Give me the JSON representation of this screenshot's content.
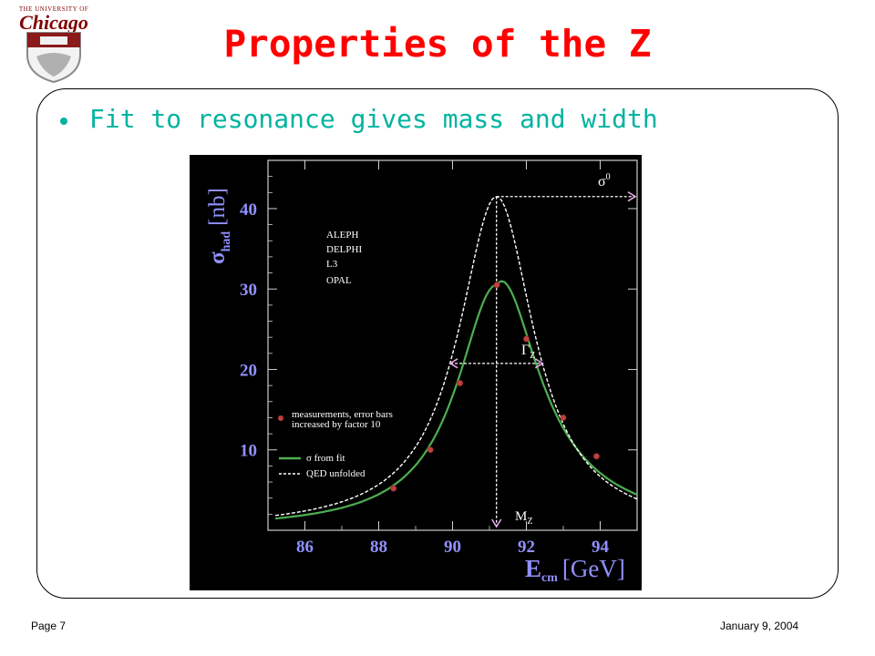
{
  "logo": {
    "top_text": "THE UNIVERSITY OF",
    "name": "Chicago"
  },
  "slide": {
    "title": "Properties of the Z",
    "bullet": "Fit to resonance gives mass and width"
  },
  "footer": {
    "page": "Page 7",
    "date": "January 9, 2004"
  },
  "colors": {
    "title": "#ff0000",
    "bullet": "#00b3a0",
    "chart_bg": "#000000",
    "axis_label": "#9090ff",
    "fit_curve": "#4caf50",
    "qed_curve": "#ffffff",
    "points": "#c04040",
    "arrows": "#e6a8e6"
  },
  "chart_data": {
    "type": "line",
    "xlabel_main": "E",
    "xlabel_sub": "cm",
    "xlabel_unit": "[GeV]",
    "ylabel_main": "σ",
    "ylabel_sub": "had",
    "ylabel_unit": "[nb]",
    "xlim": [
      85,
      95
    ],
    "ylim": [
      0,
      46
    ],
    "x_ticks": [
      86,
      88,
      90,
      92,
      94
    ],
    "y_ticks": [
      10,
      20,
      30,
      40
    ],
    "experiments": [
      "ALEPH",
      "DELPHI",
      "L3",
      "OPAL"
    ],
    "legend": {
      "points": "measurements, error bars",
      "points_line2": "increased by factor 10",
      "fit": "σ from fit",
      "qed": "QED unfolded"
    },
    "series": [
      {
        "name": "σ from fit",
        "style": "solid",
        "peak": 30.5,
        "mass": 91.19,
        "width": 2.6,
        "x": [
          85.2,
          86,
          87,
          88,
          88.5,
          89,
          89.5,
          90,
          90.5,
          91,
          91.19,
          91.5,
          92,
          92.5,
          93,
          93.5,
          94,
          95
        ]
      },
      {
        "name": "QED unfolded",
        "style": "dashed",
        "peak": 41.5,
        "mass": 91.19,
        "width": 2.5,
        "x": [
          85.2,
          86,
          87,
          88,
          88.5,
          89,
          89.5,
          90,
          90.5,
          91,
          91.19,
          91.5,
          92,
          92.5,
          93,
          93.5,
          94,
          95
        ]
      }
    ],
    "points": [
      {
        "x": 88.4,
        "y": 5.2
      },
      {
        "x": 89.4,
        "y": 10.0
      },
      {
        "x": 90.2,
        "y": 18.3
      },
      {
        "x": 91.2,
        "y": 30.5
      },
      {
        "x": 92.0,
        "y": 23.8
      },
      {
        "x": 93.0,
        "y": 14.0
      },
      {
        "x": 93.9,
        "y": 9.2
      }
    ],
    "annotations": {
      "sigma0": "σ",
      "sigma0_sup": "0",
      "gamma": "Γ",
      "gamma_sub": "Z",
      "mass": "M",
      "mass_sub": "Z"
    }
  }
}
